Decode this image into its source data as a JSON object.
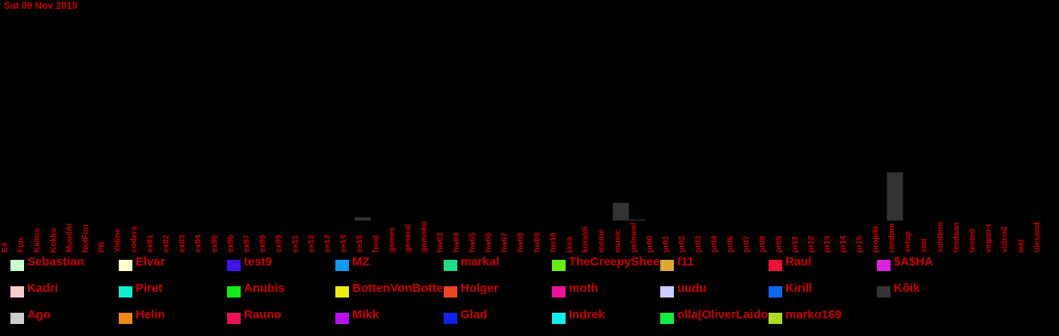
{
  "chart_data": {
    "type": "bar",
    "title": "Sat 09 Nov 2019",
    "xlabel": "",
    "ylabel": "",
    "categories": [
      "EX",
      "Fun",
      "Kaimo",
      "Kokku",
      "MuudAi",
      "NotFun",
      "PR",
      "Yldine",
      "codera",
      "ex01",
      "ex02",
      "ex03",
      "ex04",
      "ex05",
      "ex06",
      "ex07",
      "ex08",
      "ex09",
      "ex11",
      "ex12",
      "ex13",
      "ex14",
      "ex15",
      "food",
      "games",
      "general",
      "gomoku",
      "hw03",
      "hw04",
      "hw05",
      "hw06",
      "hw07",
      "hw08",
      "hw09",
      "hw10",
      "java",
      "koraldi",
      "meme",
      "music",
      "pelmeel",
      "pr00",
      "pr01",
      "pr02",
      "pr03",
      "pr04",
      "pr06",
      "pr07",
      "pr08",
      "pr09",
      "pr11",
      "pr12",
      "pr13",
      "pr14",
      "pr15",
      "projekt",
      "random",
      "setup",
      "stat",
      "suhtlem",
      "teadaan",
      "tested",
      "vegan-t",
      "videod",
      "wat",
      "ülesand"
    ],
    "series": [
      {
        "name": "Kõik",
        "color": "#333333",
        "values": [
          0,
          0,
          0,
          0,
          0,
          0,
          0,
          0,
          0,
          0,
          0,
          0,
          0,
          0,
          0,
          0,
          0,
          0,
          0,
          0,
          0,
          0,
          1,
          0,
          0,
          0,
          0,
          0,
          0,
          0,
          0,
          0,
          0,
          0,
          0,
          0,
          0,
          0,
          5.5,
          0.3,
          0,
          0,
          0,
          0,
          0,
          0,
          0,
          0,
          0,
          0,
          0,
          0,
          0,
          0,
          0,
          15,
          0,
          0,
          0,
          0,
          0,
          0,
          0,
          0,
          0
        ]
      }
    ],
    "ylim": [
      0,
      16
    ],
    "grid": false,
    "legend": [
      {
        "name": "Sebastian",
        "color": "#ccffcc"
      },
      {
        "name": "Elvar",
        "color": "#ffffcc"
      },
      {
        "name": "test9",
        "color": "#4411ee"
      },
      {
        "name": "MZ",
        "color": "#1199ee"
      },
      {
        "name": "markal",
        "color": "#22dd88"
      },
      {
        "name": "TheCreepySheep",
        "color": "#66ee11"
      },
      {
        "name": "f11",
        "color": "#ddaa33"
      },
      {
        "name": "Raul",
        "color": "#ee1133"
      },
      {
        "name": "$A$HA",
        "color": "#dd22dd"
      },
      {
        "name": "Kadri",
        "color": "#ffcccc"
      },
      {
        "name": "Piret",
        "color": "#11eecc"
      },
      {
        "name": "Anubis",
        "color": "#11ee11"
      },
      {
        "name": "BottenVonBotten",
        "color": "#eeee11"
      },
      {
        "name": "Holger",
        "color": "#ee4422"
      },
      {
        "name": "moth",
        "color": "#ee1199"
      },
      {
        "name": "uudu",
        "color": "#ccccff"
      },
      {
        "name": "Kirill",
        "color": "#1166ee"
      },
      {
        "name": "Kõik",
        "color": "#333333"
      },
      {
        "name": "Ago",
        "color": "#cccccc"
      },
      {
        "name": "Helin",
        "color": "#ee8811"
      },
      {
        "name": "Rauno",
        "color": "#ee1155"
      },
      {
        "name": "Mikk",
        "color": "#bb11ee"
      },
      {
        "name": "Glad",
        "color": "#1122ee"
      },
      {
        "name": "Indrek",
        "color": "#11eeee"
      },
      {
        "name": "olla(OliverLaidoja)",
        "color": "#11ee44"
      },
      {
        "name": "marko169",
        "color": "#aadd22"
      }
    ],
    "legend_columns": 9
  }
}
